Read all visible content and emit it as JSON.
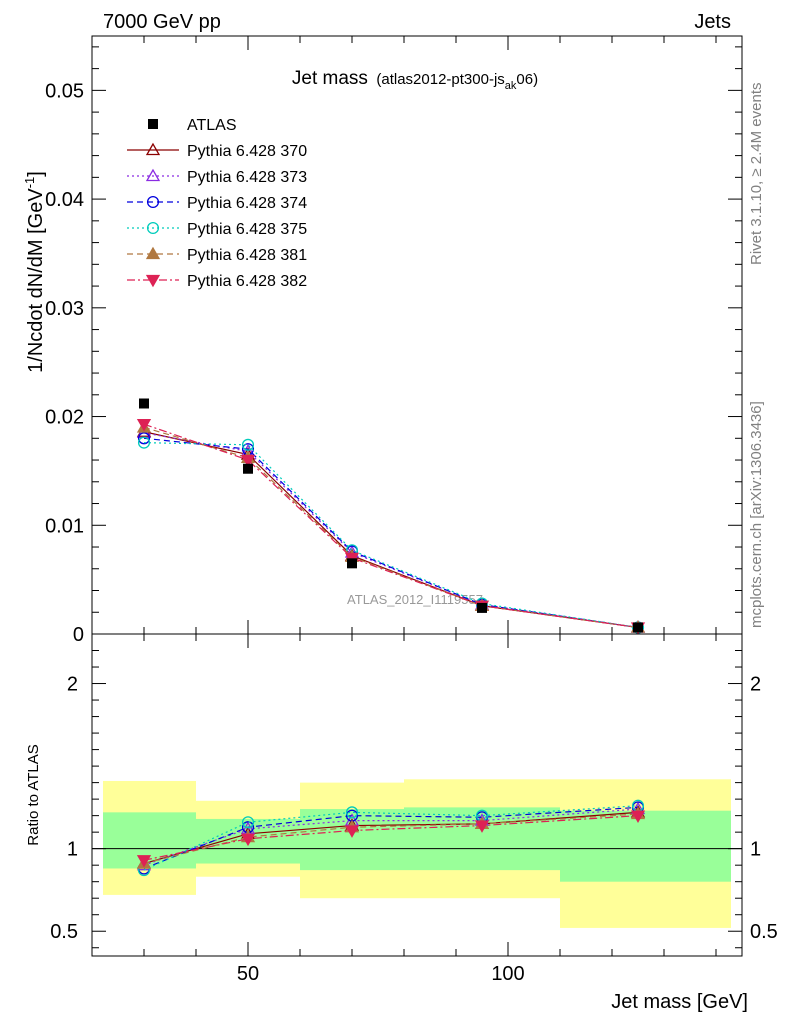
{
  "header": {
    "left": "7000 GeV pp",
    "right": "Jets"
  },
  "side_labels": {
    "rivet": "Rivet 3.1.10, ≥ 2.4M events",
    "mcplots": "mcplots.cern.ch [arXiv:1306.3436]"
  },
  "chart_data": [
    {
      "type": "line",
      "title_main": "Jet mass",
      "title_sub_pre": "(atlas2012-pt300-js",
      "title_sub_subscript": "ak",
      "title_sub_post": "06)",
      "ylabel": "1/Ncdot dN/dM [GeV",
      "ylabel_sup": "-1",
      "ylabel_post": "]",
      "ylim": [
        0,
        0.055
      ],
      "yticks": [
        0,
        0.01,
        0.02,
        0.03,
        0.04,
        0.05
      ],
      "ytick_labels": [
        "0",
        "0.01",
        "0.02",
        "0.03",
        "0.04",
        "0.05"
      ],
      "xlim": [
        20,
        145
      ],
      "watermark": "ATLAS_2012_I1119557",
      "data": {
        "name": "ATLAS",
        "x": [
          30,
          50,
          70,
          95,
          125
        ],
        "y": [
          0.0212,
          0.0152,
          0.0065,
          0.0024,
          0.0006
        ]
      },
      "series": [
        {
          "name": "Pythia 6.428 370",
          "color": "#8b0000",
          "dash": "",
          "marker": "triangle-up-open",
          "y": [
            0.0186,
            0.0165,
            0.0072,
            0.0026,
            0.0006
          ]
        },
        {
          "name": "Pythia 6.428 373",
          "color": "#8a2be2",
          "dash": "2,3",
          "marker": "triangle-up-open",
          "y": [
            0.0185,
            0.0168,
            0.0075,
            0.0027,
            0.0006
          ]
        },
        {
          "name": "Pythia 6.428 374",
          "color": "#0000dd",
          "dash": "6,4",
          "marker": "circle-open",
          "y": [
            0.018,
            0.017,
            0.0076,
            0.0027,
            0.0006
          ]
        },
        {
          "name": "Pythia 6.428 375",
          "color": "#00ccbb",
          "dash": "2,3",
          "marker": "circle-open",
          "y": [
            0.0176,
            0.0174,
            0.0077,
            0.0028,
            0.0006
          ]
        },
        {
          "name": "Pythia 6.428 381",
          "color": "#b07840",
          "dash": "6,4",
          "marker": "triangle-up-filled",
          "y": [
            0.019,
            0.0162,
            0.0071,
            0.0026,
            0.0006
          ]
        },
        {
          "name": "Pythia 6.428 382",
          "color": "#dd2255",
          "dash": "8,3,2,3",
          "marker": "triangle-down-filled",
          "y": [
            0.0193,
            0.016,
            0.007,
            0.0026,
            0.0006
          ]
        }
      ]
    },
    {
      "type": "line",
      "ylabel": "Ratio to ATLAS",
      "xlabel": "Jet mass [GeV]",
      "xlim": [
        20,
        145
      ],
      "xticks": [
        50,
        100
      ],
      "xtick_labels": [
        "50",
        "100"
      ],
      "ylim": [
        0.35,
        2.3
      ],
      "yticks": [
        0.5,
        1,
        2
      ],
      "ytick_labels": [
        "0.5",
        "1",
        "2"
      ],
      "bands": {
        "bin_edges": [
          [
            20,
            40
          ],
          [
            40,
            60
          ],
          [
            60,
            80
          ],
          [
            80,
            110
          ],
          [
            110,
            145
          ]
        ],
        "green": [
          [
            0.88,
            1.22
          ],
          [
            0.91,
            1.18
          ],
          [
            0.87,
            1.24
          ],
          [
            0.87,
            1.25
          ],
          [
            0.8,
            1.23
          ]
        ],
        "yellow": [
          [
            0.72,
            1.41
          ],
          [
            0.83,
            1.29
          ],
          [
            0.7,
            1.4
          ],
          [
            0.7,
            1.42
          ],
          [
            0.52,
            1.42
          ]
        ],
        "green_color": "#99ff99",
        "yellow_color": "#ffff99"
      },
      "series": [
        {
          "name": "Pythia 6.428 370",
          "y": [
            0.91,
            1.09,
            1.14,
            1.15,
            1.22
          ]
        },
        {
          "name": "Pythia 6.428 373",
          "y": [
            0.9,
            1.12,
            1.17,
            1.17,
            1.24
          ]
        },
        {
          "name": "Pythia 6.428 374",
          "y": [
            0.88,
            1.13,
            1.2,
            1.19,
            1.25
          ]
        },
        {
          "name": "Pythia 6.428 375",
          "y": [
            0.87,
            1.16,
            1.22,
            1.2,
            1.26
          ]
        },
        {
          "name": "Pythia 6.428 381",
          "y": [
            0.91,
            1.07,
            1.13,
            1.15,
            1.21
          ]
        },
        {
          "name": "Pythia 6.428 382",
          "y": [
            0.93,
            1.06,
            1.11,
            1.14,
            1.2
          ]
        }
      ]
    }
  ]
}
